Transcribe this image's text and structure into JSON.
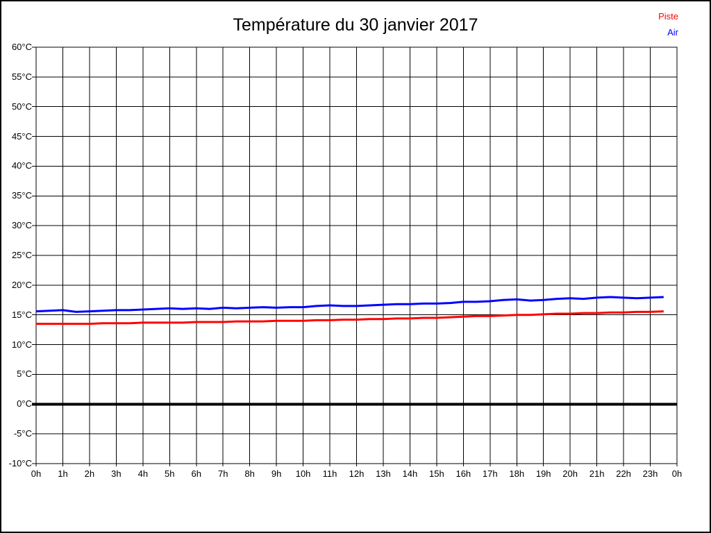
{
  "title": "Température du 30 janvier 2017",
  "legend": {
    "position": "top-right",
    "items": [
      {
        "label": "Piste",
        "color": "#ff0000"
      },
      {
        "label": "Air",
        "color": "#0000ff"
      }
    ]
  },
  "colors": {
    "grid": "#000000",
    "axis": "#000000",
    "zero_line": "#000000",
    "background": "#ffffff",
    "piste": "#ff0000",
    "air": "#0000ff"
  },
  "chart_data": {
    "type": "line",
    "title": "Température du 30 janvier 2017",
    "xlabel": "",
    "ylabel": "",
    "xlim": [
      0,
      24
    ],
    "ylim": [
      -10,
      60
    ],
    "y_tick_step": 5,
    "grid": true,
    "legend_position": "top-right",
    "zero_line": {
      "value": 0,
      "color": "#000000",
      "width": 4
    },
    "x_tick_labels": [
      "0h",
      "1h",
      "2h",
      "3h",
      "4h",
      "5h",
      "6h",
      "7h",
      "8h",
      "9h",
      "10h",
      "11h",
      "12h",
      "13h",
      "14h",
      "15h",
      "16h",
      "17h",
      "18h",
      "19h",
      "20h",
      "21h",
      "22h",
      "23h",
      "0h"
    ],
    "y_tick_labels": [
      "60°C",
      "55°C",
      "50°C",
      "45°C",
      "40°C",
      "35°C",
      "30°C",
      "25°C",
      "20°C",
      "15°C",
      "10°C",
      "5°C",
      "0°C",
      "-5°C",
      "-10°C"
    ],
    "y_tick_values": [
      60,
      55,
      50,
      45,
      40,
      35,
      30,
      25,
      20,
      15,
      10,
      5,
      0,
      -5,
      -10
    ],
    "x_unit": "h",
    "y_unit": "°C",
    "x": [
      0,
      0.5,
      1,
      1.5,
      2,
      2.5,
      3,
      3.5,
      4,
      4.5,
      5,
      5.5,
      6,
      6.5,
      7,
      7.5,
      8,
      8.5,
      9,
      9.5,
      10,
      10.5,
      11,
      11.5,
      12,
      12.5,
      13,
      13.5,
      14,
      14.5,
      15,
      15.5,
      16,
      16.5,
      17,
      17.5,
      18,
      18.5,
      19,
      19.5,
      20,
      20.5,
      21,
      21.5,
      22,
      22.5,
      23,
      23.5
    ],
    "series": [
      {
        "name": "Piste",
        "color": "#ff0000",
        "line_width": 3,
        "values": [
          13.5,
          13.5,
          13.5,
          13.5,
          13.5,
          13.6,
          13.6,
          13.6,
          13.7,
          13.7,
          13.7,
          13.7,
          13.8,
          13.8,
          13.8,
          13.9,
          13.9,
          13.9,
          14.0,
          14.0,
          14.0,
          14.1,
          14.1,
          14.2,
          14.2,
          14.3,
          14.3,
          14.4,
          14.4,
          14.5,
          14.5,
          14.6,
          14.7,
          14.8,
          14.8,
          14.9,
          15.0,
          15.0,
          15.1,
          15.2,
          15.2,
          15.3,
          15.3,
          15.4,
          15.4,
          15.5,
          15.5,
          15.6
        ]
      },
      {
        "name": "Air",
        "color": "#0000ff",
        "line_width": 3,
        "values": [
          15.6,
          15.7,
          15.8,
          15.5,
          15.6,
          15.7,
          15.8,
          15.8,
          15.9,
          16.0,
          16.1,
          16.0,
          16.1,
          16.0,
          16.2,
          16.1,
          16.2,
          16.3,
          16.2,
          16.3,
          16.3,
          16.5,
          16.6,
          16.5,
          16.5,
          16.6,
          16.7,
          16.8,
          16.8,
          16.9,
          16.9,
          17.0,
          17.2,
          17.2,
          17.3,
          17.5,
          17.6,
          17.4,
          17.5,
          17.7,
          17.8,
          17.7,
          17.9,
          18.0,
          17.9,
          17.8,
          17.9,
          18.0
        ]
      }
    ]
  }
}
